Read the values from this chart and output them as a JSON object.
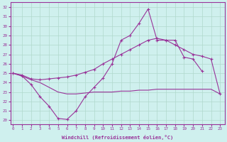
{
  "xlabel": "Windchill (Refroidissement éolien,°C)",
  "bg_color": "#cff0ee",
  "grid_color": "#b0d8cc",
  "line_color": "#993399",
  "x_ticks": [
    0,
    1,
    2,
    3,
    4,
    5,
    6,
    7,
    8,
    9,
    10,
    11,
    12,
    13,
    14,
    15,
    16,
    17,
    18,
    19,
    20,
    21,
    22,
    23
  ],
  "y_ticks": [
    20,
    21,
    22,
    23,
    24,
    25,
    26,
    27,
    28,
    29,
    30,
    31,
    32
  ],
  "ylim": [
    19.6,
    32.5
  ],
  "xlim": [
    -0.3,
    23.5
  ],
  "curve1_x": [
    0,
    1,
    2,
    3,
    4,
    5,
    6,
    7,
    8,
    9,
    10,
    11,
    12,
    13,
    14,
    15,
    16,
    17,
    18,
    19,
    20,
    21
  ],
  "curve1_y": [
    25.0,
    24.7,
    23.8,
    22.5,
    21.5,
    20.2,
    20.1,
    21.0,
    22.5,
    23.5,
    24.5,
    26.0,
    28.5,
    29.0,
    30.3,
    31.8,
    28.5,
    28.5,
    28.5,
    26.7,
    26.5,
    25.2
  ],
  "curve2_x": [
    0,
    1,
    2,
    3,
    4,
    5,
    6,
    7,
    8,
    9,
    10,
    11,
    12,
    13,
    14,
    15,
    16,
    17,
    18,
    19,
    20,
    21,
    22,
    23
  ],
  "curve2_y": [
    25.0,
    24.8,
    24.4,
    24.3,
    24.4,
    24.5,
    24.6,
    24.8,
    25.1,
    25.4,
    26.0,
    26.5,
    27.0,
    27.5,
    28.0,
    28.5,
    28.7,
    28.5,
    28.0,
    27.5,
    27.0,
    26.8,
    26.5,
    22.8
  ],
  "curve3_x": [
    0,
    1,
    2,
    3,
    4,
    5,
    6,
    7,
    8,
    9,
    10,
    11,
    12,
    13,
    14,
    15,
    16,
    17,
    18,
    19,
    20,
    21,
    22,
    23
  ],
  "curve3_y": [
    25.0,
    24.7,
    24.3,
    24.0,
    23.5,
    23.0,
    22.8,
    22.8,
    22.9,
    23.0,
    23.0,
    23.0,
    23.1,
    23.1,
    23.2,
    23.2,
    23.3,
    23.3,
    23.3,
    23.3,
    23.3,
    23.3,
    23.3,
    22.8
  ]
}
